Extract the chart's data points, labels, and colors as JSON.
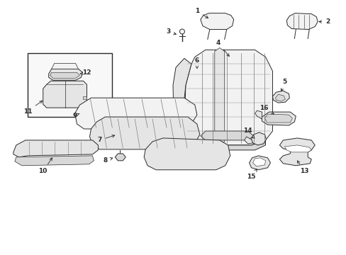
{
  "bg_color": "#ffffff",
  "line_color": "#2a2a2a",
  "fill_light": "#f2f2f2",
  "fill_mid": "#e5e5e5",
  "fill_dark": "#d8d8d8",
  "fig_width": 4.89,
  "fig_height": 3.6,
  "dpi": 100
}
